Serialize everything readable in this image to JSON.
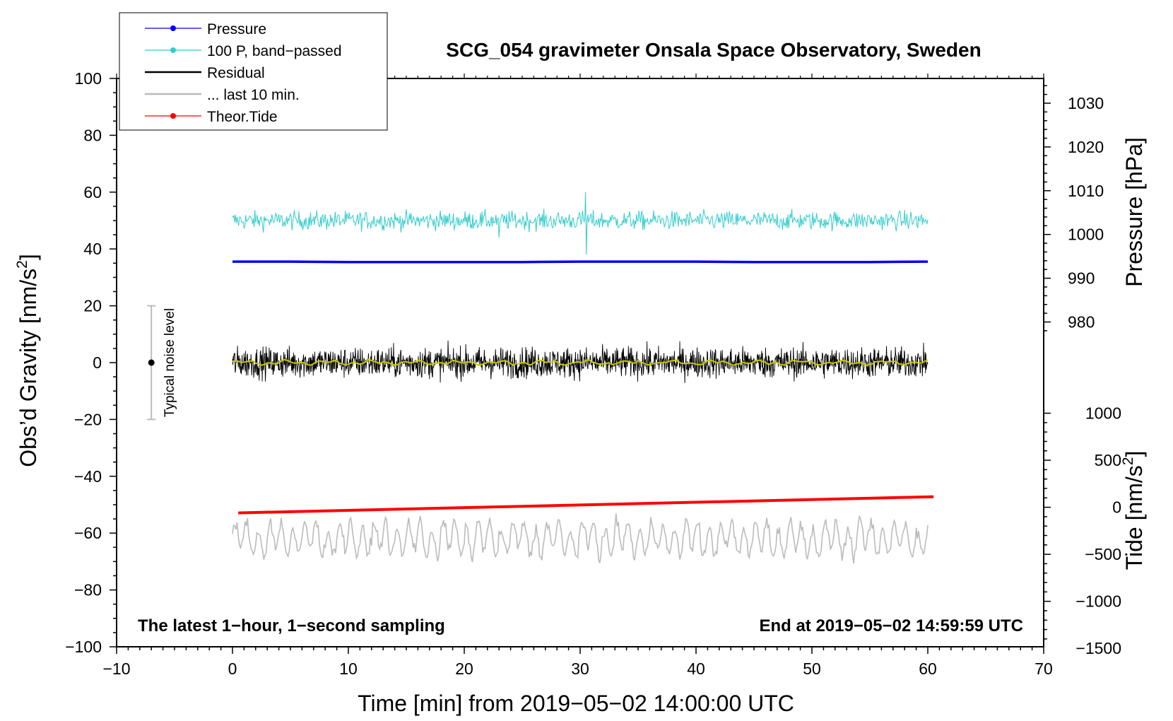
{
  "chart_data": {
    "type": "line",
    "title": "SCG_054 gravimeter Onsala Space Observatory, Sweden",
    "xlabel": "Time [min] from 2019−05−02 14:00:00 UTC",
    "ylabel": "Obs’d Gravity [nm/s",
    "ylabel_sup": "2",
    "ylabel_close": "]",
    "y2label": "Pressure [hPa]",
    "y3label": "Tide [nm/s",
    "y3label_sup": "2",
    "y3label_close": "]",
    "xlim": [
      -10,
      70
    ],
    "ylim": [
      -100,
      100
    ],
    "x_ticks": [
      -10,
      0,
      10,
      20,
      30,
      40,
      50,
      60,
      70
    ],
    "x_tick_labels": [
      "−10",
      "0",
      "10",
      "20",
      "30",
      "40",
      "50",
      "60",
      "70"
    ],
    "y_ticks": [
      100,
      80,
      60,
      40,
      20,
      0,
      -20,
      -40,
      -60,
      -80,
      -100
    ],
    "y_tick_labels": [
      "100",
      "80",
      "60",
      "40",
      "20",
      "0",
      "−20",
      "−40",
      "−60",
      "−80",
      "−100"
    ],
    "pressure_ticks": [
      1030,
      1020,
      1010,
      1000,
      990,
      980
    ],
    "pressure_tick_labels": [
      "1030",
      "1020",
      "1010",
      "1000",
      "990",
      "980"
    ],
    "pressure_to_gravity": {
      "ref_hpa": 1000,
      "ref_gravity": 45.1,
      "gravity_per_hpa": 1.54
    },
    "tide_ticks": [
      1000,
      500,
      0,
      -500,
      -1000,
      -1500
    ],
    "tide_tick_labels": [
      "1000",
      "500",
      "0",
      "−500",
      "−1000",
      "−1500"
    ],
    "tide_to_gravity": {
      "ref_tide": 0,
      "ref_gravity": -50.9,
      "gravity_per_tide": 0.0331
    },
    "notes": {
      "left": "The latest 1−hour, 1−second sampling",
      "right": "End at 2019−05−02 14:59:59 UTC"
    },
    "noise_bar": {
      "label": "Typical noise level",
      "x": -7.0,
      "center": 0,
      "low": -20,
      "high": 20,
      "color": "#bbbbbb"
    },
    "legend": {
      "position": "top-left",
      "entries": [
        {
          "label": "Pressure",
          "color": "#0000ff",
          "marker": true
        },
        {
          "label": "100 P, band−passed",
          "color": "#33cccc",
          "marker": true
        },
        {
          "label": "Residual",
          "color": "#000000",
          "marker": false
        },
        {
          "label": "... last 10 min.",
          "color": "#bbbbbb",
          "marker": false
        },
        {
          "label": "Theor.Tide",
          "color": "#ff0000",
          "marker": true
        }
      ]
    },
    "series": [
      {
        "name": "Pressure",
        "color": "#0000ff",
        "x_range": [
          0,
          60
        ],
        "values_hpa": [
          993.8,
          993.8,
          993.7,
          993.7,
          993.7,
          993.7,
          993.8,
          993.8,
          993.8,
          993.7,
          993.7,
          993.7,
          993.8
        ],
        "note": "plotted on the pressure axis (right)"
      },
      {
        "name": "100 P, band−passed",
        "color": "#33cccc",
        "x_range": [
          0,
          60
        ],
        "mean": 50,
        "typical_amplitude": 3,
        "min": 38,
        "max": 60,
        "note": "noisy oscillation; extremes near 23 min and 30.5 min"
      },
      {
        "name": "Residual",
        "color": "#000000",
        "x_range": [
          0,
          60
        ],
        "mean": 0,
        "typical_amplitude": 6,
        "min": -15,
        "max": 15,
        "note": "1-second residual, noisy"
      },
      {
        "name": "Residual smoothed",
        "color": "#c8c800",
        "x_range": [
          0,
          60
        ],
        "mean": 0,
        "typical_amplitude": 1
      },
      {
        "name": "... last 10 min.",
        "color": "#bbbbbb",
        "x_range": [
          0,
          60
        ],
        "mean": -62,
        "typical_amplitude": 5,
        "min": -74,
        "max": -47
      },
      {
        "name": "Theor.Tide",
        "color": "#ff0000",
        "x": [
          0.5,
          60.5
        ],
        "values_tide": [
          -60,
          112
        ],
        "note": "plotted on the tide axis (right)"
      }
    ]
  }
}
